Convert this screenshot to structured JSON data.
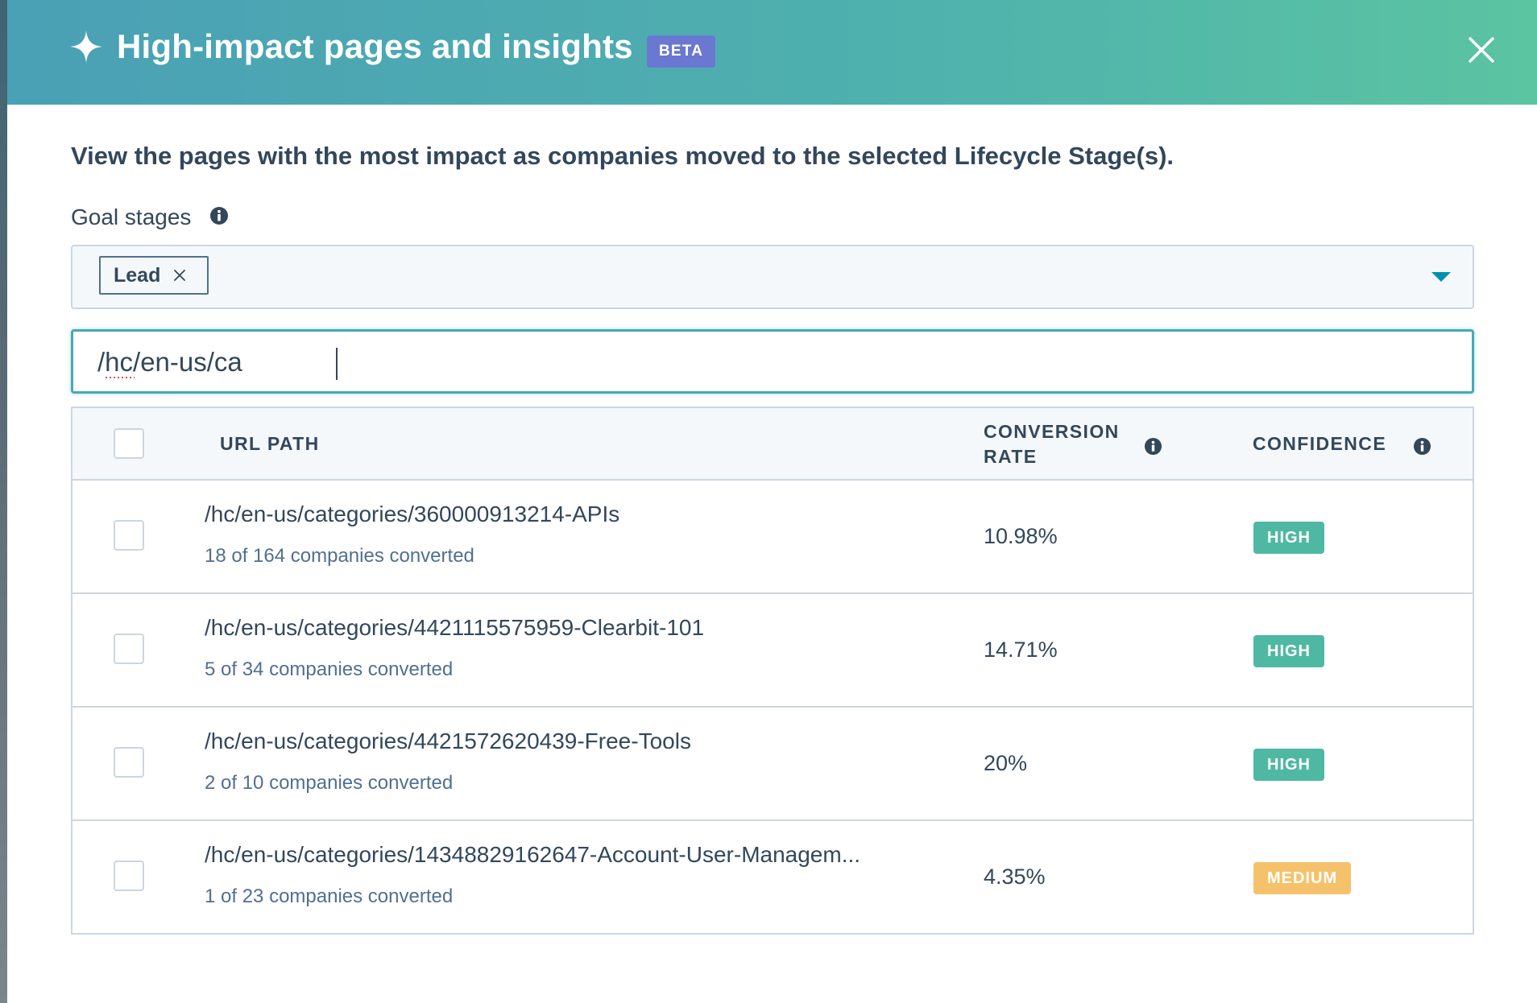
{
  "header": {
    "title": "High-impact pages and insights",
    "beta_label": "BETA",
    "sparkle_icon": "sparkle-icon",
    "close_icon": "close-icon",
    "gradient_colors": [
      "#4aa0b5",
      "#5bc4a1"
    ]
  },
  "description": "View the pages with the most impact as companies moved to the selected Lifecycle Stage(s).",
  "goal_stages": {
    "label": "Goal stages",
    "info_icon": "info-icon",
    "selected": [
      {
        "label": "Lead"
      }
    ],
    "dropdown_icon": "caret-down-icon"
  },
  "search": {
    "value": "/hc/en-us/ca"
  },
  "table": {
    "columns": {
      "url": "URL PATH",
      "conversion": "CONVERSION RATE",
      "confidence": "CONFIDENCE"
    },
    "rows": [
      {
        "path": "/hc/en-us/categories/360000913214-APIs",
        "sub": "18 of 164 companies converted",
        "rate": "10.98%",
        "confidence": "HIGH"
      },
      {
        "path": "/hc/en-us/categories/4421115575959-Clearbit-101",
        "sub": "5 of 34 companies converted",
        "rate": "14.71%",
        "confidence": "HIGH"
      },
      {
        "path": "/hc/en-us/categories/4421572620439-Free-Tools",
        "sub": "2 of 10 companies converted",
        "rate": "20%",
        "confidence": "HIGH"
      },
      {
        "path": "/hc/en-us/categories/14348829162647-Account-User-Managem...",
        "sub": "1 of 23 companies converted",
        "rate": "4.35%",
        "confidence": "MEDIUM"
      }
    ]
  },
  "colors": {
    "accent": "#48a8b8",
    "beta": "#6a78d1",
    "high": "#4fb8a3",
    "medium": "#f5c26b",
    "text": "#33475b"
  }
}
